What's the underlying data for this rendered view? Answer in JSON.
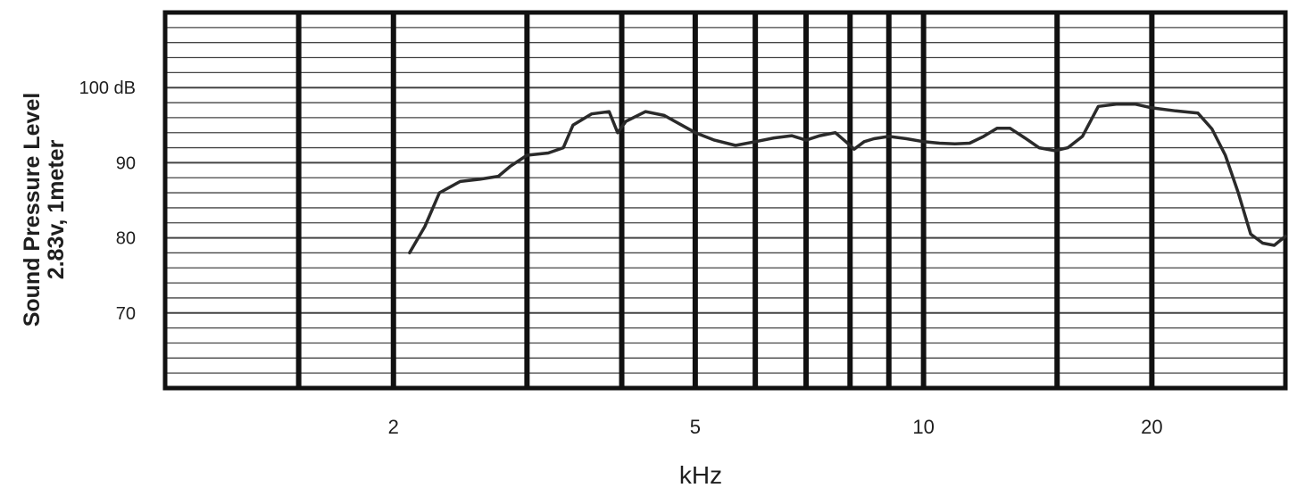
{
  "chart_data": {
    "type": "line",
    "title": "",
    "xlabel": "kHz",
    "ylabel_lines": [
      "Sound Pressure Level",
      "2.83v, 1meter"
    ],
    "x_scale": "log",
    "xlim": [
      1,
      30
    ],
    "ylim": [
      60,
      110
    ],
    "x_ticks": [
      {
        "value": 2,
        "label": "2"
      },
      {
        "value": 5,
        "label": "5"
      },
      {
        "value": 10,
        "label": "10"
      },
      {
        "value": 20,
        "label": "20"
      }
    ],
    "y_ticks": [
      {
        "value": 100,
        "label": "100 dB"
      },
      {
        "value": 90,
        "label": "90"
      },
      {
        "value": 80,
        "label": "80"
      },
      {
        "value": 70,
        "label": "70"
      }
    ],
    "vertical_gridlines": [
      1.5,
      2,
      3,
      4,
      5,
      6,
      7,
      8,
      9,
      10,
      15,
      20
    ],
    "minor_horizontal_step": 2,
    "grid": true,
    "legend": "none",
    "colors": {
      "curve": "#2a2a2a",
      "grid_major": "#111111",
      "grid_minor": "#444444",
      "text": "#1e1e1e"
    },
    "series": [
      {
        "x": [
          2.1,
          2.2,
          2.3,
          2.45,
          2.6,
          2.75,
          2.85,
          3.0,
          3.2,
          3.35,
          3.45,
          3.65,
          3.85,
          3.95,
          4.05,
          4.3,
          4.55,
          4.8,
          5.0,
          5.3,
          5.65,
          6.0,
          6.35,
          6.7,
          7.0,
          7.3,
          7.65,
          7.9,
          8.1,
          8.35,
          8.6,
          9.0,
          9.5,
          10.0,
          10.5,
          11.0,
          11.5,
          12.0,
          12.5,
          13.0,
          13.6,
          14.2,
          14.9,
          15.5,
          16.2,
          17.0,
          18.0,
          19.0,
          20.0,
          21.5,
          23.0,
          24.0,
          25.0,
          26.0,
          27.0,
          28.0,
          29.0,
          30.0
        ],
        "values": [
          78.0,
          81.5,
          86.0,
          87.5,
          87.8,
          88.2,
          89.5,
          91.0,
          91.3,
          92.0,
          95.0,
          96.5,
          96.8,
          94.0,
          95.5,
          96.8,
          96.3,
          95.0,
          94.0,
          93.0,
          92.3,
          92.8,
          93.3,
          93.6,
          93.0,
          93.6,
          94.0,
          92.8,
          91.8,
          92.8,
          93.2,
          93.5,
          93.2,
          92.8,
          92.6,
          92.5,
          92.6,
          93.5,
          94.6,
          94.6,
          93.3,
          92.0,
          91.6,
          92.0,
          93.5,
          97.5,
          97.8,
          97.8,
          97.3,
          96.9,
          96.6,
          94.5,
          91.0,
          86.0,
          80.5,
          79.3,
          79.0,
          80.2
        ]
      }
    ]
  }
}
